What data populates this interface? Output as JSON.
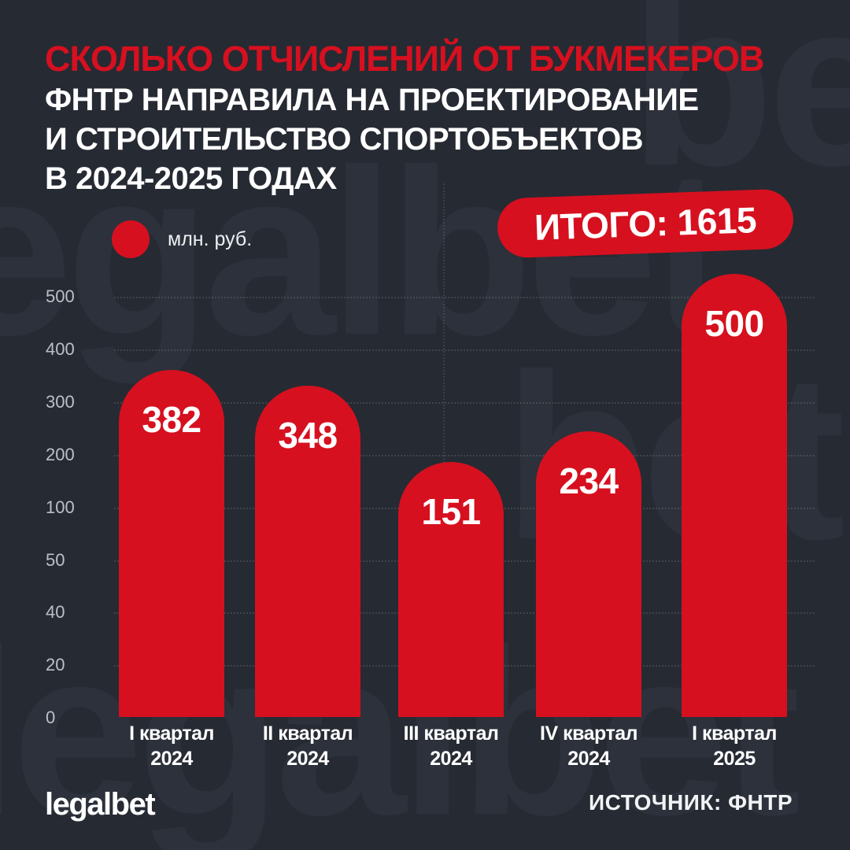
{
  "page": {
    "background_color": "#262a33",
    "accent_red": "#d6101f",
    "watermark_text_color": "#2c313b"
  },
  "title": {
    "line1": "СКОЛЬКО ОТЧИСЛЕНИЙ ОТ БУКМЕКЕРОВ",
    "line2": "ФНТР НАПРАВИЛА НА ПРОЕКТИРОВАНИЕ",
    "line3": "И СТРОИТЕЛЬСТВО СПОРТОБЪЕКТОВ",
    "line4": "В 2024-2025 ГОДАХ"
  },
  "legend": {
    "marker": "red-circle",
    "label": "млн. руб."
  },
  "total_badge": {
    "label": "ИТОГО: 1615"
  },
  "watermarks": [
    "bet",
    "legalbet",
    "bet",
    "legalbet"
  ],
  "chart_data": {
    "type": "bar",
    "title": "Сколько отчислений от букмекеров ФНТР направила на проектирование и строительство спортобъектов в 2024-2025 годах",
    "unit": "млн. руб.",
    "total_value": 1615,
    "categories": [
      "I квартал 2024",
      "II квартал 2024",
      "III квартал 2024",
      "IV квартал 2024",
      "I квартал 2025"
    ],
    "category_lines": [
      [
        "I квартал",
        "2024"
      ],
      [
        "II квартал",
        "2024"
      ],
      [
        "III квартал",
        "2024"
      ],
      [
        "IV квартал",
        "2024"
      ],
      [
        "I квартал",
        "2025"
      ]
    ],
    "values": [
      382,
      348,
      151,
      234,
      500
    ],
    "y_ticks": [
      500,
      400,
      300,
      200,
      100,
      50,
      40,
      20,
      0
    ],
    "bar_color": "#d6101f",
    "value_label_color": "#ffffff",
    "grid": "horizontal-dashed",
    "legend_position": "top-left"
  },
  "footer": {
    "logo": "legalbet",
    "source": "ИСТОЧНИК: ФНТР"
  }
}
